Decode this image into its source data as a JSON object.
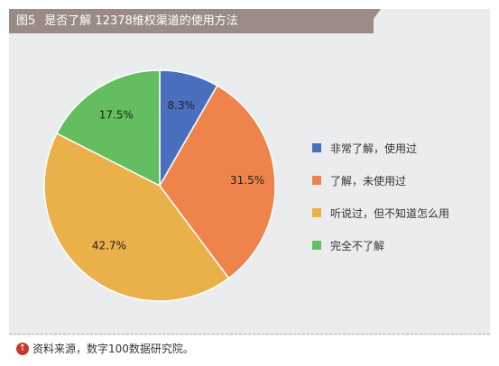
{
  "header": {
    "figure_label": "图5",
    "title": "是否了解 12378维权渠道的使用方法"
  },
  "source": {
    "icon": "up-arrow-icon",
    "text": "资料来源，数字100数据研究院。"
  },
  "chart_data": {
    "type": "pie",
    "title": "是否了解 12378维权渠道的使用方法",
    "legend_position": "right",
    "slices": [
      {
        "label": "非常了解，使用过",
        "value": 8.3,
        "display": "8.3%",
        "color": "#4a6fbf"
      },
      {
        "label": "了解，未使用过",
        "value": 31.5,
        "display": "31.5%",
        "color": "#ee844b"
      },
      {
        "label": "听说过，但不知道怎么用",
        "value": 42.7,
        "display": "42.7%",
        "color": "#eab04a"
      },
      {
        "label": "完全不了解",
        "value": 17.5,
        "display": "17.5%",
        "color": "#64bd5e"
      }
    ]
  }
}
